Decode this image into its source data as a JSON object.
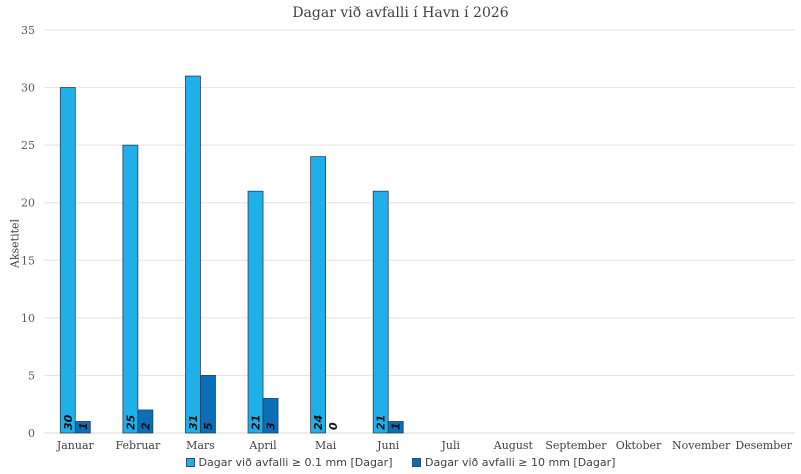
{
  "chart_data": {
    "type": "bar",
    "title": "Dagar við avfalli í Havn í 2026",
    "ylabel": "Aksetitel",
    "xlabel": "",
    "ylim": [
      0,
      35
    ],
    "yticks": [
      0,
      5,
      10,
      15,
      20,
      25,
      30,
      35
    ],
    "grid": true,
    "legend_position": "bottom",
    "categories": [
      "Januar",
      "Februar",
      "Mars",
      "April",
      "Mai",
      "Juni",
      "Juli",
      "August",
      "September",
      "Oktober",
      "November",
      "Desember"
    ],
    "series": [
      {
        "name": "Dagar við avfalli ≥ 0.1 mm [Dagar]",
        "color": "#1fb0ea",
        "values": [
          30,
          25,
          31,
          21,
          24,
          21,
          null,
          null,
          null,
          null,
          null,
          null
        ]
      },
      {
        "name": "Dagar við avfalli ≥ 10 mm [Dagar]",
        "color": "#0a6fb8",
        "values": [
          1,
          2,
          5,
          3,
          0,
          1,
          null,
          null,
          null,
          null,
          null,
          null
        ]
      }
    ]
  }
}
